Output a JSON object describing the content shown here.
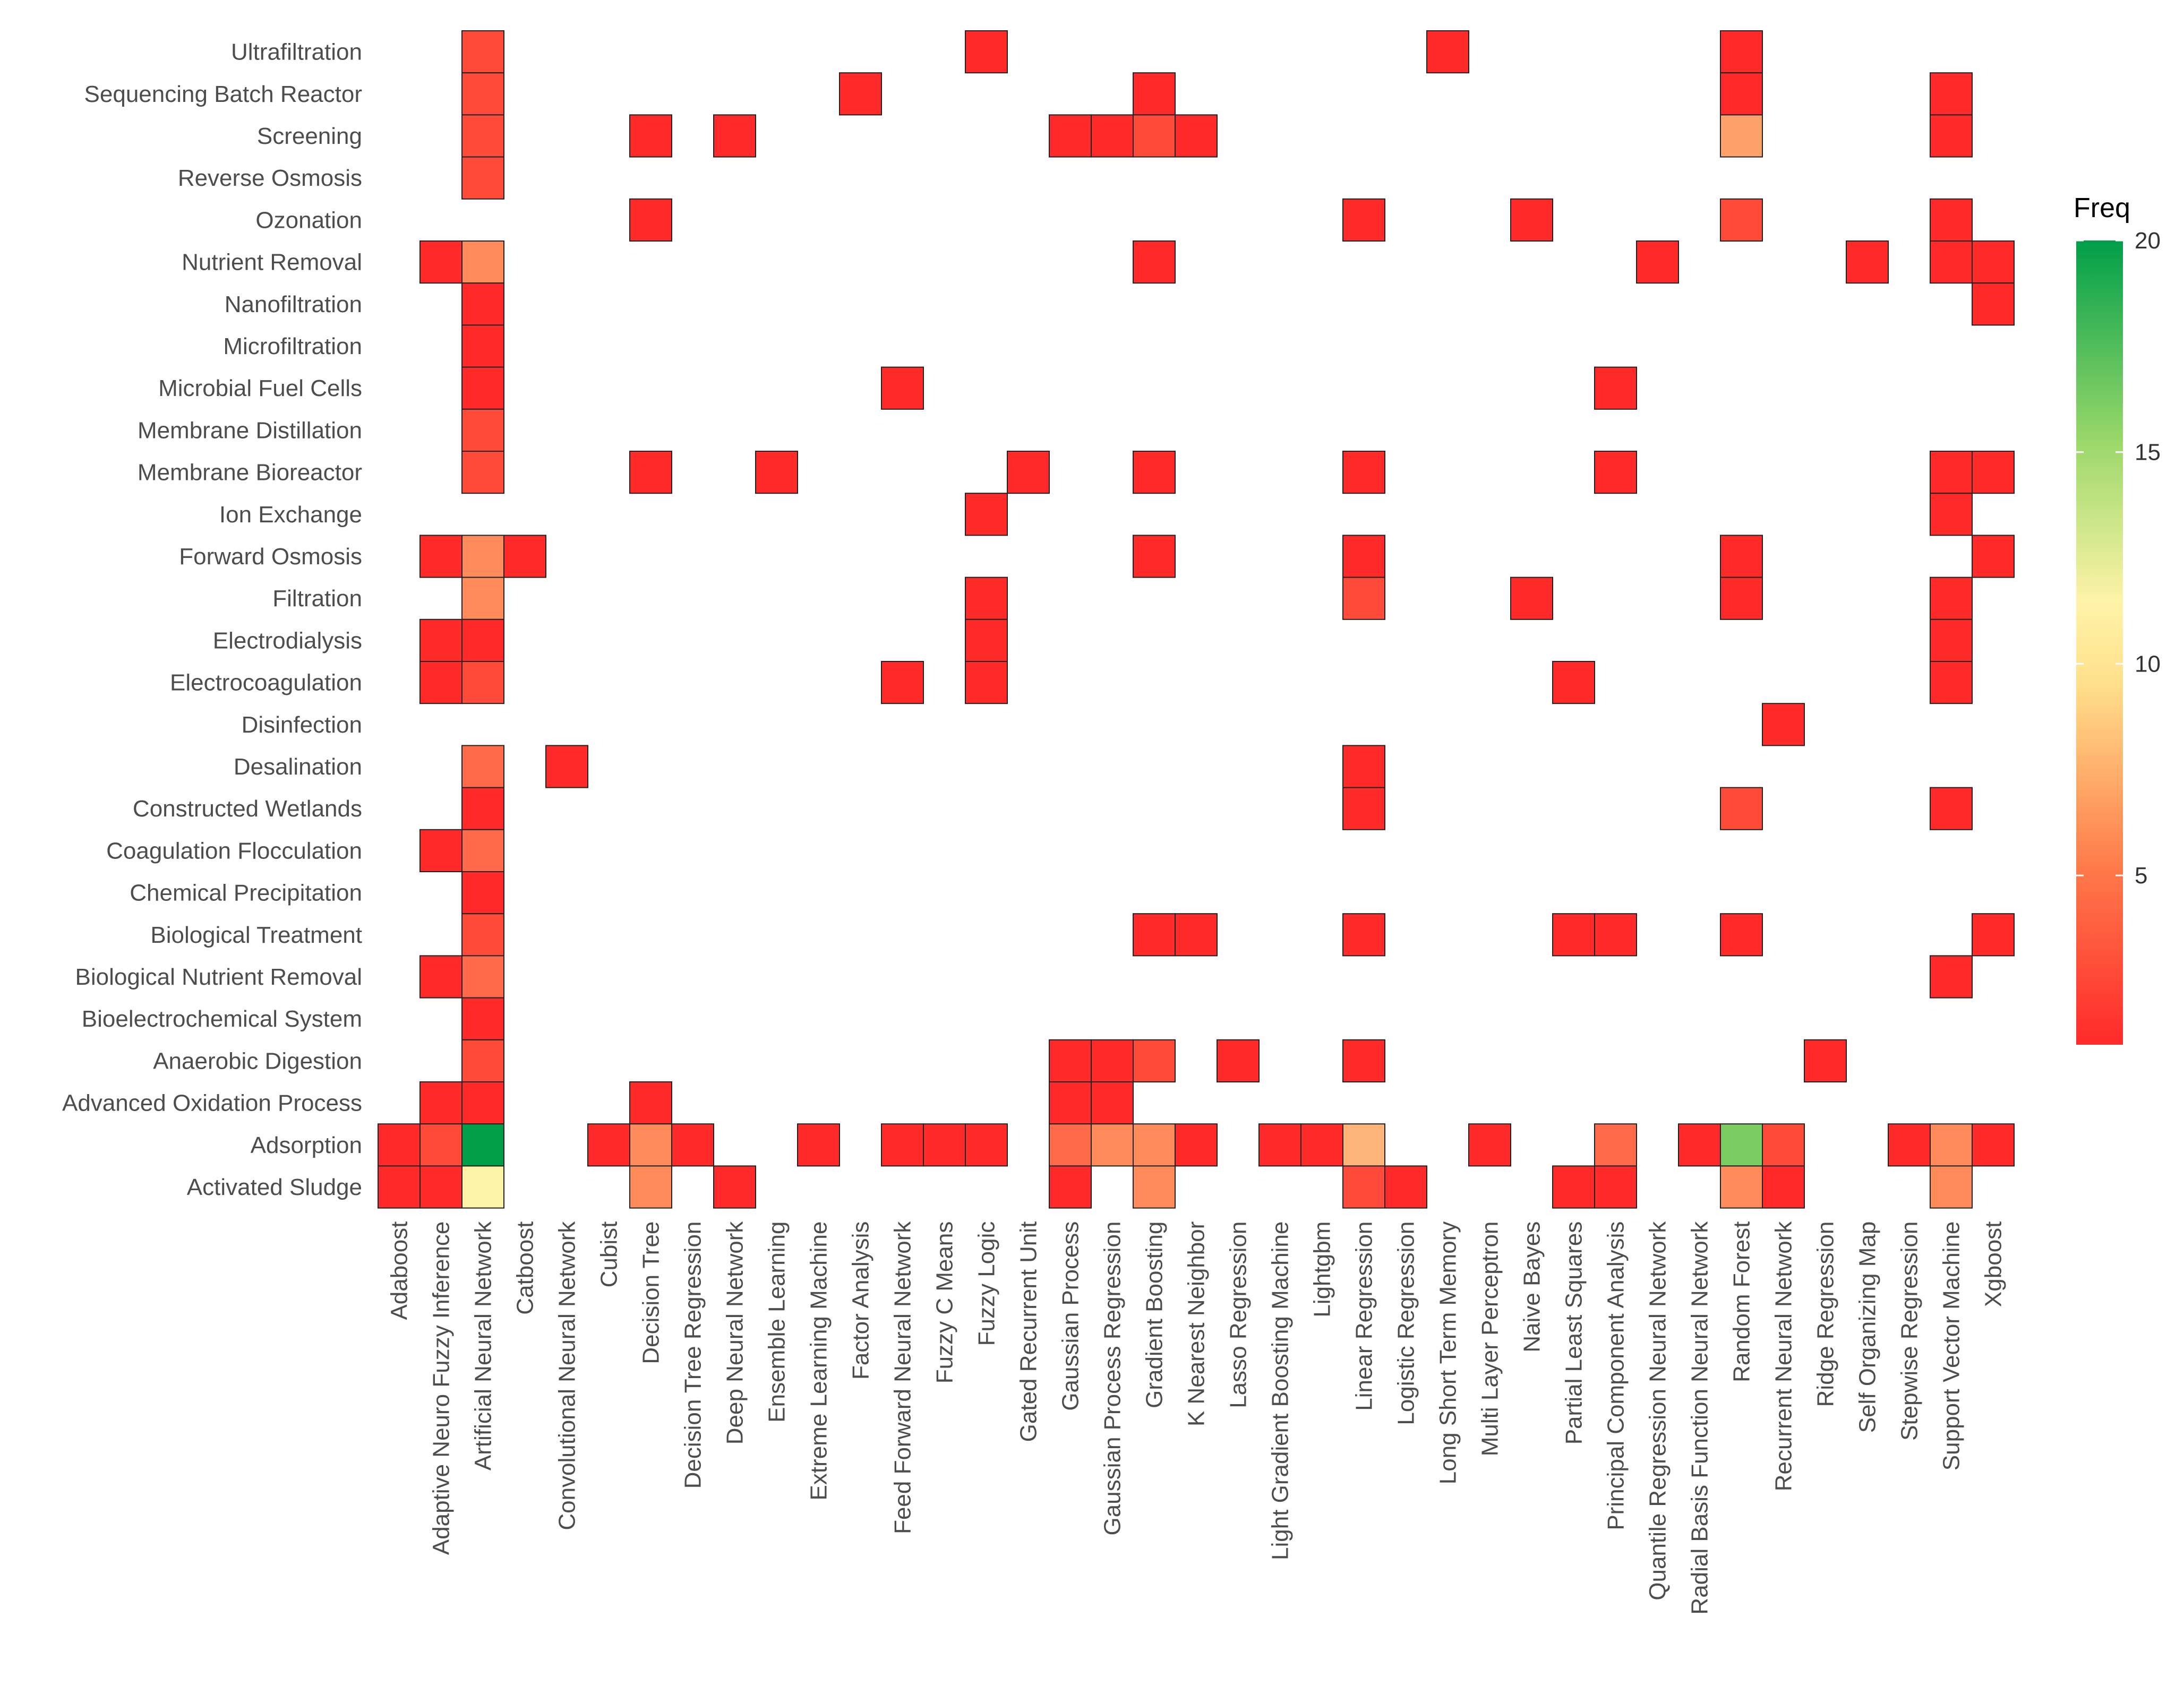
{
  "chart_data": {
    "type": "heatmap",
    "title": "",
    "xlabel": "",
    "ylabel": "",
    "legend": {
      "title": "Freq",
      "ticks": [
        5,
        10,
        15,
        20
      ],
      "range": [
        1,
        20
      ],
      "placement": "right",
      "colors": [
        "#ff2a2a",
        "#ff9a60",
        "#fff3a8",
        "#9ad86a",
        "#009e49"
      ]
    },
    "columns": [
      "Adaboost",
      "Adaptive Neuro Fuzzy Inference",
      "Artificial Neural Network",
      "Catboost",
      "Convolutional Neural Network",
      "Cubist",
      "Decision Tree",
      "Decision Tree Regression",
      "Deep Neural Network",
      "Ensemble Learning",
      "Extreme Learning Machine",
      "Factor Analysis",
      "Feed Forward Neural Network",
      "Fuzzy C Means",
      "Fuzzy Logic",
      "Gated Recurrent Unit",
      "Gaussian Process",
      "Gaussian Process Regression",
      "Gradient Boosting",
      "K Nearest Neighbor",
      "Lasso Regression",
      "Light Gradient Boosting Machine",
      "Lightgbm",
      "Linear Regression",
      "Logistic Regression",
      "Long Short Term Memory",
      "Multi Layer Perceptron",
      "Naive Bayes",
      "Partial Least Squares",
      "Principal Component Analysis",
      "Quantile Regression Neural Network",
      "Radial Basis Function Neural Network",
      "Random Forest",
      "Recurrent Neural Network",
      "Ridge Regression",
      "Self Organizing Map",
      "Stepwise Regression",
      "Support Vector Machine",
      "Xgboost"
    ],
    "rows": [
      "Ultrafiltration",
      "Sequencing Batch Reactor",
      "Screening",
      "Reverse Osmosis",
      "Ozonation",
      "Nutrient Removal",
      "Nanofiltration",
      "Microfiltration",
      "Microbial Fuel Cells",
      "Membrane Distillation",
      "Membrane Bioreactor",
      "Ion Exchange",
      "Forward Osmosis",
      "Filtration",
      "Electrodialysis",
      "Electrocoagulation",
      "Disinfection",
      "Desalination",
      "Constructed Wetlands",
      "Coagulation Flocculation",
      "Chemical Precipitation",
      "Biological Treatment",
      "Biological Nutrient Removal",
      "Bioelectrochemical System",
      "Anaerobic Digestion",
      "Advanced Oxidation Process",
      "Adsorption",
      "Activated Sludge"
    ],
    "cells": [
      [
        "Ultrafiltration",
        "Artificial Neural Network",
        2
      ],
      [
        "Ultrafiltration",
        "Fuzzy Logic",
        1
      ],
      [
        "Ultrafiltration",
        "Long Short Term Memory",
        1
      ],
      [
        "Ultrafiltration",
        "Random Forest",
        1
      ],
      [
        "Sequencing Batch Reactor",
        "Artificial Neural Network",
        2
      ],
      [
        "Sequencing Batch Reactor",
        "Factor Analysis",
        1
      ],
      [
        "Sequencing Batch Reactor",
        "Gradient Boosting",
        1
      ],
      [
        "Sequencing Batch Reactor",
        "Random Forest",
        1
      ],
      [
        "Sequencing Batch Reactor",
        "Support Vector Machine",
        1
      ],
      [
        "Screening",
        "Artificial Neural Network",
        2
      ],
      [
        "Screening",
        "Decision Tree",
        1
      ],
      [
        "Screening",
        "Deep Neural Network",
        1
      ],
      [
        "Screening",
        "Gaussian Process",
        1
      ],
      [
        "Screening",
        "Gaussian Process Regression",
        1
      ],
      [
        "Screening",
        "Gradient Boosting",
        2
      ],
      [
        "Screening",
        "K Nearest Neighbor",
        1
      ],
      [
        "Screening",
        "Random Forest",
        5
      ],
      [
        "Screening",
        "Support Vector Machine",
        1
      ],
      [
        "Reverse Osmosis",
        "Artificial Neural Network",
        2
      ],
      [
        "Ozonation",
        "Decision Tree",
        1
      ],
      [
        "Ozonation",
        "Linear Regression",
        1
      ],
      [
        "Ozonation",
        "Naive Bayes",
        1
      ],
      [
        "Ozonation",
        "Random Forest",
        2
      ],
      [
        "Ozonation",
        "Support Vector Machine",
        1
      ],
      [
        "Nutrient Removal",
        "Adaptive Neuro Fuzzy Inference",
        1
      ],
      [
        "Nutrient Removal",
        "Artificial Neural Network",
        4
      ],
      [
        "Nutrient Removal",
        "Gradient Boosting",
        1
      ],
      [
        "Nutrient Removal",
        "Quantile Regression Neural Network",
        1
      ],
      [
        "Nutrient Removal",
        "Self Organizing Map",
        1
      ],
      [
        "Nutrient Removal",
        "Support Vector Machine",
        1
      ],
      [
        "Nutrient Removal",
        "Xgboost",
        1
      ],
      [
        "Nanofiltration",
        "Artificial Neural Network",
        1
      ],
      [
        "Nanofiltration",
        "Xgboost",
        1
      ],
      [
        "Microfiltration",
        "Artificial Neural Network",
        1
      ],
      [
        "Microbial Fuel Cells",
        "Artificial Neural Network",
        1
      ],
      [
        "Microbial Fuel Cells",
        "Feed Forward Neural Network",
        1
      ],
      [
        "Microbial Fuel Cells",
        "Principal Component Analysis",
        1
      ],
      [
        "Membrane Distillation",
        "Artificial Neural Network",
        2
      ],
      [
        "Membrane Bioreactor",
        "Artificial Neural Network",
        2
      ],
      [
        "Membrane Bioreactor",
        "Decision Tree",
        1
      ],
      [
        "Membrane Bioreactor",
        "Ensemble Learning",
        1
      ],
      [
        "Membrane Bioreactor",
        "Gated Recurrent Unit",
        1
      ],
      [
        "Membrane Bioreactor",
        "Gradient Boosting",
        1
      ],
      [
        "Membrane Bioreactor",
        "Linear Regression",
        1
      ],
      [
        "Membrane Bioreactor",
        "Principal Component Analysis",
        1
      ],
      [
        "Membrane Bioreactor",
        "Support Vector Machine",
        1
      ],
      [
        "Membrane Bioreactor",
        "Xgboost",
        1
      ],
      [
        "Ion Exchange",
        "Fuzzy Logic",
        1
      ],
      [
        "Ion Exchange",
        "Support Vector Machine",
        1
      ],
      [
        "Forward Osmosis",
        "Adaptive Neuro Fuzzy Inference",
        1
      ],
      [
        "Forward Osmosis",
        "Artificial Neural Network",
        4
      ],
      [
        "Forward Osmosis",
        "Catboost",
        1
      ],
      [
        "Forward Osmosis",
        "Gradient Boosting",
        1
      ],
      [
        "Forward Osmosis",
        "Linear Regression",
        1
      ],
      [
        "Forward Osmosis",
        "Random Forest",
        1
      ],
      [
        "Forward Osmosis",
        "Xgboost",
        1
      ],
      [
        "Filtration",
        "Artificial Neural Network",
        4
      ],
      [
        "Filtration",
        "Fuzzy Logic",
        1
      ],
      [
        "Filtration",
        "Linear Regression",
        2
      ],
      [
        "Filtration",
        "Naive Bayes",
        1
      ],
      [
        "Filtration",
        "Random Forest",
        1
      ],
      [
        "Filtration",
        "Support Vector Machine",
        1
      ],
      [
        "Electrodialysis",
        "Adaptive Neuro Fuzzy Inference",
        1
      ],
      [
        "Electrodialysis",
        "Artificial Neural Network",
        1
      ],
      [
        "Electrodialysis",
        "Fuzzy Logic",
        1
      ],
      [
        "Electrodialysis",
        "Support Vector Machine",
        1
      ],
      [
        "Electrocoagulation",
        "Adaptive Neuro Fuzzy Inference",
        1
      ],
      [
        "Electrocoagulation",
        "Artificial Neural Network",
        2
      ],
      [
        "Electrocoagulation",
        "Feed Forward Neural Network",
        1
      ],
      [
        "Electrocoagulation",
        "Fuzzy Logic",
        1
      ],
      [
        "Electrocoagulation",
        "Partial Least Squares",
        1
      ],
      [
        "Electrocoagulation",
        "Support Vector Machine",
        1
      ],
      [
        "Disinfection",
        "Recurrent Neural Network",
        1
      ],
      [
        "Desalination",
        "Artificial Neural Network",
        3
      ],
      [
        "Desalination",
        "Convolutional Neural Network",
        1
      ],
      [
        "Desalination",
        "Linear Regression",
        1
      ],
      [
        "Constructed Wetlands",
        "Artificial Neural Network",
        1
      ],
      [
        "Constructed Wetlands",
        "Linear Regression",
        1
      ],
      [
        "Constructed Wetlands",
        "Random Forest",
        2
      ],
      [
        "Constructed Wetlands",
        "Support Vector Machine",
        1
      ],
      [
        "Coagulation Flocculation",
        "Adaptive Neuro Fuzzy Inference",
        1
      ],
      [
        "Coagulation Flocculation",
        "Artificial Neural Network",
        3
      ],
      [
        "Chemical Precipitation",
        "Artificial Neural Network",
        1
      ],
      [
        "Biological Treatment",
        "Artificial Neural Network",
        2
      ],
      [
        "Biological Treatment",
        "Gradient Boosting",
        1
      ],
      [
        "Biological Treatment",
        "K Nearest Neighbor",
        1
      ],
      [
        "Biological Treatment",
        "Linear Regression",
        1
      ],
      [
        "Biological Treatment",
        "Partial Least Squares",
        1
      ],
      [
        "Biological Treatment",
        "Principal Component Analysis",
        1
      ],
      [
        "Biological Treatment",
        "Random Forest",
        1
      ],
      [
        "Biological Treatment",
        "Xgboost",
        1
      ],
      [
        "Biological Nutrient Removal",
        "Adaptive Neuro Fuzzy Inference",
        1
      ],
      [
        "Biological Nutrient Removal",
        "Artificial Neural Network",
        3
      ],
      [
        "Biological Nutrient Removal",
        "Support Vector Machine",
        1
      ],
      [
        "Bioelectrochemical System",
        "Artificial Neural Network",
        1
      ],
      [
        "Anaerobic Digestion",
        "Artificial Neural Network",
        2
      ],
      [
        "Anaerobic Digestion",
        "Gaussian Process",
        1
      ],
      [
        "Anaerobic Digestion",
        "Gaussian Process Regression",
        1
      ],
      [
        "Anaerobic Digestion",
        "Gradient Boosting",
        2
      ],
      [
        "Anaerobic Digestion",
        "Lasso Regression",
        1
      ],
      [
        "Anaerobic Digestion",
        "Linear Regression",
        1
      ],
      [
        "Anaerobic Digestion",
        "Ridge Regression",
        1
      ],
      [
        "Advanced Oxidation Process",
        "Adaptive Neuro Fuzzy Inference",
        1
      ],
      [
        "Advanced Oxidation Process",
        "Artificial Neural Network",
        1
      ],
      [
        "Advanced Oxidation Process",
        "Decision Tree",
        1
      ],
      [
        "Advanced Oxidation Process",
        "Gaussian Process",
        1
      ],
      [
        "Advanced Oxidation Process",
        "Gaussian Process Regression",
        1
      ],
      [
        "Adsorption",
        "Adaboost",
        1
      ],
      [
        "Adsorption",
        "Adaptive Neuro Fuzzy Inference",
        2
      ],
      [
        "Adsorption",
        "Artificial Neural Network",
        20
      ],
      [
        "Adsorption",
        "Cubist",
        1
      ],
      [
        "Adsorption",
        "Decision Tree",
        4
      ],
      [
        "Adsorption",
        "Decision Tree Regression",
        1
      ],
      [
        "Adsorption",
        "Extreme Learning Machine",
        1
      ],
      [
        "Adsorption",
        "Feed Forward Neural Network",
        1
      ],
      [
        "Adsorption",
        "Fuzzy C Means",
        1
      ],
      [
        "Adsorption",
        "Fuzzy Logic",
        1
      ],
      [
        "Adsorption",
        "Gaussian Process",
        3
      ],
      [
        "Adsorption",
        "Gaussian Process Regression",
        4
      ],
      [
        "Adsorption",
        "Gradient Boosting",
        4
      ],
      [
        "Adsorption",
        "K Nearest Neighbor",
        1
      ],
      [
        "Adsorption",
        "Light Gradient Boosting Machine",
        1
      ],
      [
        "Adsorption",
        "Lightgbm",
        1
      ],
      [
        "Adsorption",
        "Linear Regression",
        6
      ],
      [
        "Adsorption",
        "Multi Layer Perceptron",
        1
      ],
      [
        "Adsorption",
        "Principal Component Analysis",
        3
      ],
      [
        "Adsorption",
        "Radial Basis Function Neural Network",
        1
      ],
      [
        "Adsorption",
        "Random Forest",
        16
      ],
      [
        "Adsorption",
        "Recurrent Neural Network",
        2
      ],
      [
        "Adsorption",
        "Stepwise Regression",
        1
      ],
      [
        "Adsorption",
        "Support Vector Machine",
        4
      ],
      [
        "Adsorption",
        "Xgboost",
        1
      ],
      [
        "Activated Sludge",
        "Adaboost",
        1
      ],
      [
        "Activated Sludge",
        "Adaptive Neuro Fuzzy Inference",
        1
      ],
      [
        "Activated Sludge",
        "Artificial Neural Network",
        9
      ],
      [
        "Activated Sludge",
        "Decision Tree",
        4
      ],
      [
        "Activated Sludge",
        "Deep Neural Network",
        1
      ],
      [
        "Activated Sludge",
        "Gaussian Process",
        1
      ],
      [
        "Activated Sludge",
        "Gradient Boosting",
        4
      ],
      [
        "Activated Sludge",
        "Linear Regression",
        2
      ],
      [
        "Activated Sludge",
        "Logistic Regression",
        1
      ],
      [
        "Activated Sludge",
        "Partial Least Squares",
        1
      ],
      [
        "Activated Sludge",
        "Principal Component Analysis",
        1
      ],
      [
        "Activated Sludge",
        "Random Forest",
        4
      ],
      [
        "Activated Sludge",
        "Recurrent Neural Network",
        1
      ],
      [
        "Activated Sludge",
        "Support Vector Machine",
        4
      ]
    ]
  }
}
